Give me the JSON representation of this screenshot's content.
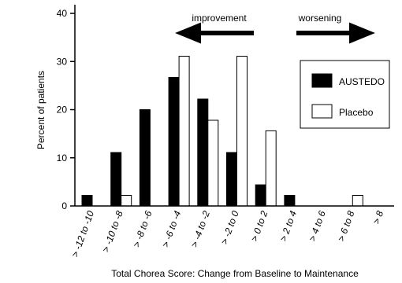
{
  "chart_data": {
    "type": "bar",
    "xlabel": "Total Chorea Score: Change from Baseline to Maintenance",
    "ylabel": "Percent of patients",
    "ylim": [
      0,
      40
    ],
    "yticks": [
      "0",
      "10",
      "20",
      "30",
      "40"
    ],
    "grid": false,
    "legend_position": "right",
    "categories": [
      "> -12 to -10",
      "> -10 to -8",
      "> -8 to -6",
      "> -6 to -4",
      "> -4 to -2",
      "> -2 to 0",
      "> 0 to 2",
      "> 2 to 4",
      "> 4 to 6",
      "> 6 to 8",
      "> 8"
    ],
    "series": [
      {
        "name": "AUSTEDO",
        "color": "#000000",
        "values": [
          2.2,
          11.1,
          20.0,
          26.7,
          22.2,
          11.1,
          4.4,
          2.2,
          0,
          0,
          0
        ]
      },
      {
        "name": "Placebo",
        "color": "#ffffff",
        "values": [
          0,
          2.2,
          0,
          31.1,
          17.8,
          31.1,
          15.6,
          0,
          0,
          2.2,
          0
        ]
      }
    ],
    "annotations": {
      "improvement": "improvement",
      "worsening": "worsening"
    }
  }
}
